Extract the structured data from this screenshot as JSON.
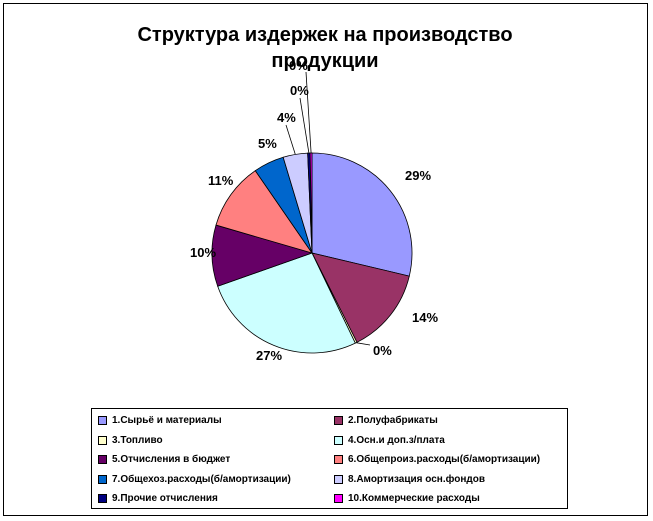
{
  "chart_data": {
    "type": "pie",
    "title": "Структура  издержек на производство продукции",
    "label_format": "percent",
    "legend_position": "bottom",
    "slices": [
      {
        "label": "1.Сырьё и материалы",
        "value": 29,
        "display": "29%",
        "color": "#9999ff"
      },
      {
        "label": "2.Полуфабрикаты",
        "value": 14,
        "display": "14%",
        "color": "#993366"
      },
      {
        "label": "3.Топливо",
        "value": 0.3,
        "display": "0%",
        "color": "#ffffcc"
      },
      {
        "label": "4.Осн.и доп.з/плата",
        "value": 27,
        "display": "27%",
        "color": "#ccffff"
      },
      {
        "label": "5.Отчисления в бюджет",
        "value": 10,
        "display": "10%",
        "color": "#660066"
      },
      {
        "label": "6.Общепроиз.расходы(б/амортизации)",
        "value": 11,
        "display": "11%",
        "color": "#ff8080"
      },
      {
        "label": "7.Общехоз.расходы(б/амортизации)",
        "value": 5,
        "display": "5%",
        "color": "#0066cc"
      },
      {
        "label": "8.Амортизация осн.фондов",
        "value": 4,
        "display": "4%",
        "color": "#ccccff"
      },
      {
        "label": "9.Прочие отчисления",
        "value": 0.4,
        "display": "0%",
        "color": "#000080"
      },
      {
        "label": "10.Коммерческие расходы",
        "value": 0.3,
        "display": "0%",
        "color": "#ff00ff"
      }
    ]
  }
}
